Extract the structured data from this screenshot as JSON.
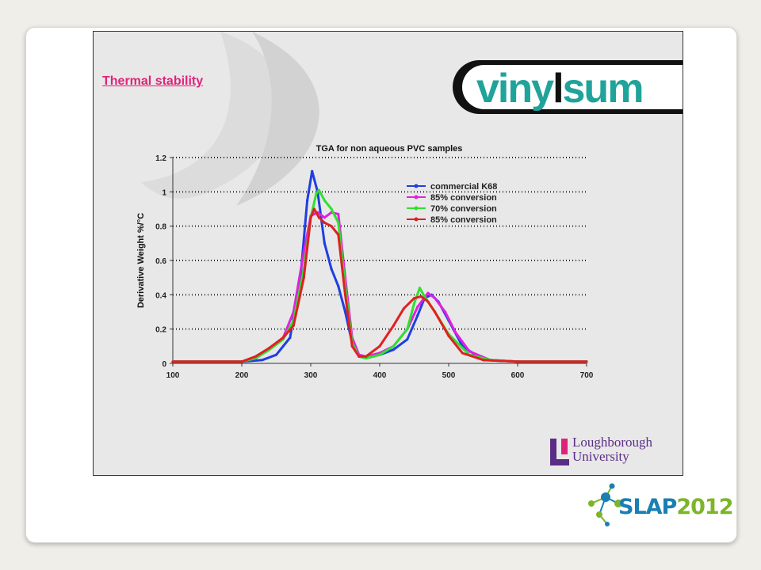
{
  "slide": {
    "title": "Thermal stability",
    "brand_a": "viny",
    "brand_b": "l",
    "brand_c": "sum",
    "university_line1": "Loughborough",
    "university_line2": "University"
  },
  "footer": {
    "logo_s": "S",
    "logo_lap": "LAP",
    "logo_year": "2012"
  },
  "colors": {
    "title": "#e0237a",
    "brand_teal": "#1fa39a",
    "university": "#5b2c86"
  },
  "chart_data": {
    "type": "line",
    "title": "TGA for non aqueous PVC samples",
    "xlabel": "",
    "ylabel": "Derivative Weight %/°C",
    "xlim": [
      100,
      700
    ],
    "ylim": [
      0,
      1.2
    ],
    "xticks": [
      100,
      200,
      300,
      400,
      500,
      600,
      700
    ],
    "yticks": [
      0,
      0.2,
      0.4,
      0.6,
      0.8,
      1,
      1.2
    ],
    "ytick_labels": [
      "0",
      "0.2",
      "0.4",
      "0.6",
      "0.8",
      "1",
      "1.2"
    ],
    "grid": "horizontal dotted",
    "legend_position": "top-right",
    "series": [
      {
        "name": "commercial K68",
        "color": "#1f3fe0",
        "x": [
          100,
          200,
          230,
          250,
          270,
          285,
          295,
          302,
          310,
          320,
          330,
          340,
          350,
          360,
          370,
          380,
          400,
          420,
          440,
          455,
          465,
          475,
          485,
          500,
          520,
          550,
          600,
          700
        ],
        "y": [
          0.01,
          0.01,
          0.02,
          0.05,
          0.15,
          0.5,
          0.95,
          1.12,
          1.0,
          0.7,
          0.55,
          0.45,
          0.3,
          0.12,
          0.04,
          0.03,
          0.05,
          0.08,
          0.14,
          0.28,
          0.38,
          0.4,
          0.36,
          0.25,
          0.1,
          0.02,
          0.01,
          0.01
        ]
      },
      {
        "name": "85% conversion",
        "color": "#e020e0",
        "x": [
          100,
          200,
          220,
          240,
          260,
          275,
          290,
          300,
          310,
          320,
          330,
          340,
          350,
          360,
          370,
          380,
          400,
          420,
          440,
          455,
          470,
          480,
          495,
          510,
          530,
          560,
          600,
          700
        ],
        "y": [
          0.01,
          0.01,
          0.03,
          0.08,
          0.15,
          0.3,
          0.65,
          0.86,
          0.88,
          0.85,
          0.88,
          0.87,
          0.5,
          0.15,
          0.05,
          0.04,
          0.06,
          0.1,
          0.2,
          0.33,
          0.41,
          0.38,
          0.3,
          0.18,
          0.07,
          0.02,
          0.01,
          0.01
        ]
      },
      {
        "name": "70% conversion",
        "color": "#30e030",
        "x": [
          100,
          200,
          220,
          240,
          260,
          275,
          290,
          300,
          308,
          312,
          320,
          330,
          340,
          350,
          360,
          370,
          380,
          400,
          420,
          440,
          450,
          458,
          465,
          480,
          500,
          530,
          560,
          600,
          700
        ],
        "y": [
          0.01,
          0.01,
          0.03,
          0.08,
          0.14,
          0.25,
          0.55,
          0.85,
          0.99,
          1.01,
          0.95,
          0.9,
          0.82,
          0.45,
          0.12,
          0.04,
          0.03,
          0.05,
          0.1,
          0.2,
          0.35,
          0.44,
          0.39,
          0.3,
          0.17,
          0.05,
          0.02,
          0.01,
          0.01
        ]
      },
      {
        "name": "85% conversion",
        "color": "#e02020",
        "x": [
          100,
          200,
          220,
          240,
          260,
          275,
          290,
          300,
          305,
          312,
          320,
          330,
          340,
          350,
          360,
          370,
          380,
          400,
          420,
          435,
          450,
          460,
          470,
          480,
          500,
          520,
          550,
          600,
          700
        ],
        "y": [
          0.01,
          0.01,
          0.04,
          0.09,
          0.15,
          0.22,
          0.5,
          0.85,
          0.9,
          0.85,
          0.82,
          0.8,
          0.75,
          0.4,
          0.1,
          0.04,
          0.04,
          0.1,
          0.22,
          0.32,
          0.38,
          0.39,
          0.36,
          0.3,
          0.16,
          0.06,
          0.02,
          0.01,
          0.01
        ]
      }
    ]
  }
}
